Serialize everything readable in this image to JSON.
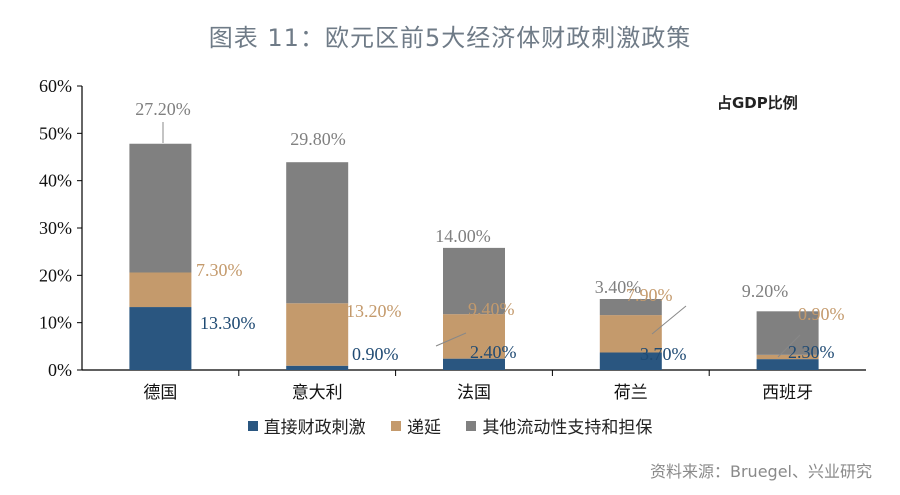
{
  "title": "图表 11：欧元区前5大经济体财政刺激政策",
  "unit_label": "占GDP比例",
  "source": "资料来源：Bruegel、兴业研究",
  "colors": {
    "direct": "#2a5680",
    "deferral": "#c49a6c",
    "other": "#808080"
  },
  "legend": [
    {
      "label": "直接财政刺激",
      "color": "#2a5680"
    },
    {
      "label": "递延",
      "color": "#c49a6c"
    },
    {
      "label": "其他流动性支持和担保",
      "color": "#808080"
    }
  ],
  "chart_data": {
    "type": "bar",
    "stacked": true,
    "title": "图表 11：欧元区前5大经济体财政刺激政策",
    "xlabel": "",
    "ylabel": "占GDP比例",
    "ylim": [
      0,
      60
    ],
    "yticks": [
      "0%",
      "10%",
      "20%",
      "30%",
      "40%",
      "50%",
      "60%"
    ],
    "categories": [
      "德国",
      "意大利",
      "法国",
      "荷兰",
      "西班牙"
    ],
    "series": [
      {
        "name": "直接财政刺激",
        "values": [
          13.3,
          0.9,
          2.4,
          3.7,
          2.3
        ],
        "labels": [
          "13.30%",
          "0.90%",
          "2.40%",
          "3.70%",
          "2.30%"
        ]
      },
      {
        "name": "递延",
        "values": [
          7.3,
          13.2,
          9.4,
          7.9,
          0.9
        ],
        "labels": [
          "7.30%",
          "13.20%",
          "9.40%",
          "7.90%",
          "0.90%"
        ]
      },
      {
        "name": "其他流动性支持和担保",
        "values": [
          27.2,
          29.8,
          14.0,
          3.4,
          9.2
        ],
        "labels": [
          "27.20%",
          "29.80%",
          "14.00%",
          "3.40%",
          "9.20%"
        ]
      }
    ],
    "legend_position": "bottom",
    "grid": false
  }
}
